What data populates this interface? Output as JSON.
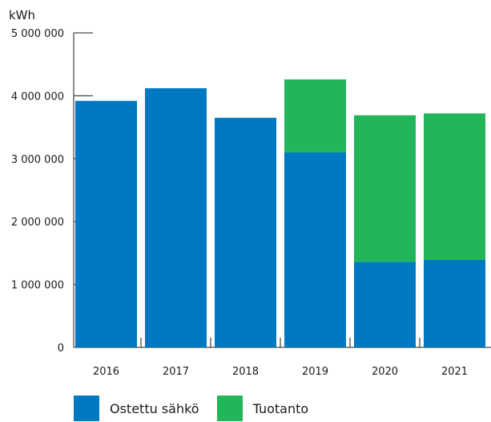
{
  "chart_data": {
    "type": "bar",
    "stacked": true,
    "unit_label": "kWh",
    "categories": [
      "2016",
      "2017",
      "2018",
      "2019",
      "2020",
      "2021"
    ],
    "series": [
      {
        "name": "Ostettu sähkö",
        "color": "#0079c2",
        "values": [
          3920000,
          4120000,
          3650000,
          3100000,
          1360000,
          1390000
        ]
      },
      {
        "name": "Tuotanto",
        "color": "#23b55a",
        "values": [
          0,
          0,
          0,
          1160000,
          2330000,
          2330000
        ]
      }
    ],
    "ylim": [
      0,
      5000000
    ],
    "yticks": [
      0,
      1000000,
      2000000,
      3000000,
      4000000,
      5000000
    ],
    "ytick_labels": [
      "0",
      "1 000 000",
      "2 000 000",
      "3 000 000",
      "4 000 000",
      "5 000 000"
    ],
    "grid": false,
    "legend_position": "bottom-left"
  }
}
